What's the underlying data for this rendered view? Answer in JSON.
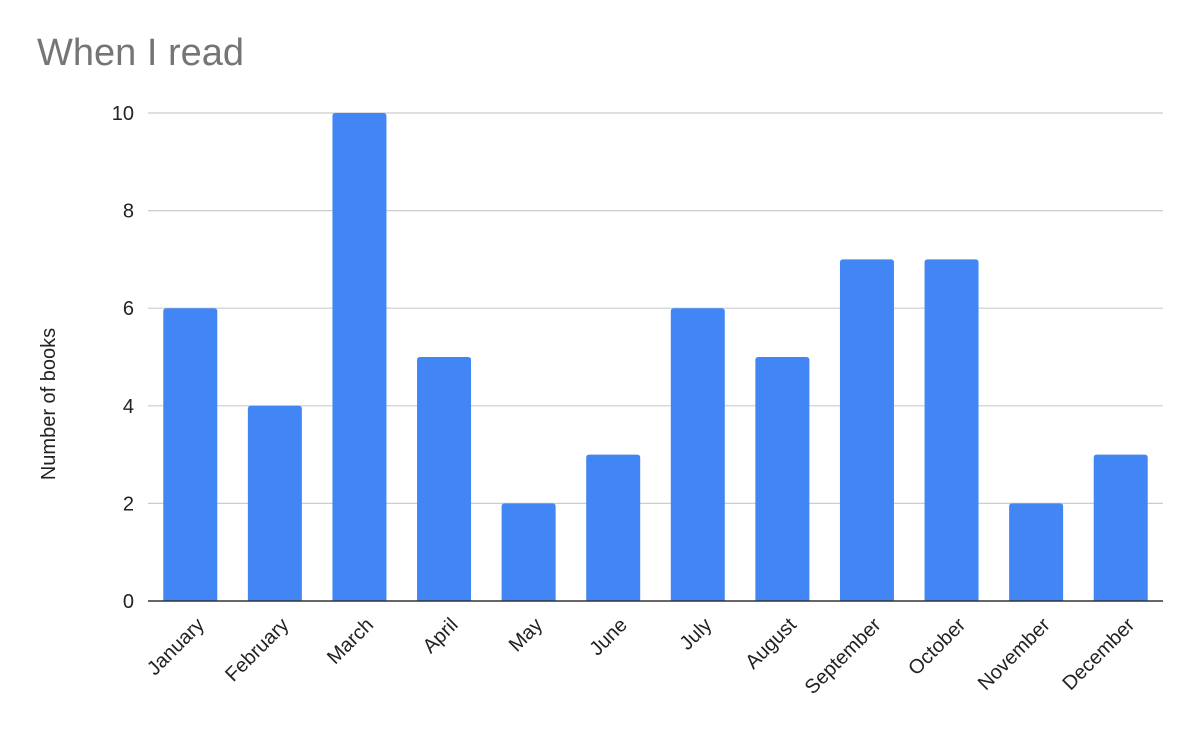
{
  "chart_data": {
    "type": "bar",
    "title": "When I read",
    "xlabel": "",
    "ylabel": "Number of books",
    "categories": [
      "January",
      "February",
      "March",
      "April",
      "May",
      "June",
      "July",
      "August",
      "September",
      "October",
      "November",
      "December"
    ],
    "values": [
      6,
      4,
      10,
      5,
      2,
      3,
      6,
      5,
      7,
      7,
      2,
      3
    ],
    "ylim": [
      0,
      10
    ],
    "yticks": [
      "0",
      "2",
      "4",
      "6",
      "8",
      "10"
    ],
    "grid": true,
    "legend": "none",
    "bar_color": "#4285f4",
    "grid_color": "#cccccc",
    "axis_color": "#333333"
  }
}
